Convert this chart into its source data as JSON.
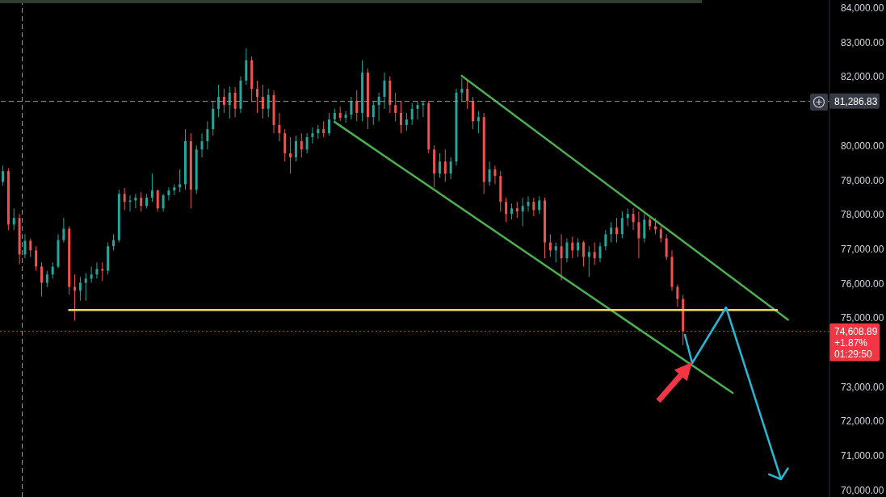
{
  "chart_data": {
    "type": "candlestick",
    "categories": [
      null,
      null,
      null,
      null,
      null,
      null,
      null,
      null,
      null,
      null,
      null,
      null,
      null,
      null,
      null,
      null,
      null,
      null,
      null,
      null,
      null,
      null,
      null,
      null,
      null,
      null,
      null,
      null,
      null,
      null,
      null,
      null,
      null,
      null,
      null,
      null,
      null,
      null,
      null,
      null,
      null,
      null,
      null,
      null,
      null,
      null,
      null,
      null,
      null,
      null,
      null,
      null,
      null,
      null,
      null,
      null,
      null,
      null,
      null,
      null,
      null,
      null,
      null,
      null,
      null,
      null,
      null,
      null,
      null,
      null,
      null,
      null,
      null,
      null,
      null,
      null,
      null,
      null,
      null,
      null,
      null,
      null,
      null,
      null,
      null,
      null,
      null,
      null,
      null,
      null,
      null,
      null,
      null,
      null,
      null,
      null,
      null,
      null,
      null,
      null,
      null,
      null,
      null,
      null,
      null,
      null,
      null,
      null,
      null,
      null,
      null,
      null,
      null,
      null,
      null,
      null,
      null,
      null,
      null,
      null,
      null,
      null,
      null,
      null,
      null,
      null,
      null,
      null,
      null,
      null,
      null,
      null,
      null,
      null,
      null,
      null,
      null,
      null,
      null,
      null,
      null,
      null,
      null,
      null,
      null,
      null,
      null,
      null,
      null,
      null
    ],
    "ohlc": [
      [
        78950,
        79420,
        78840,
        79260
      ],
      [
        79260,
        79350,
        77550,
        77710
      ],
      [
        77710,
        78180,
        77550,
        77900
      ],
      [
        77900,
        78020,
        76560,
        76840
      ],
      [
        76840,
        77430,
        76730,
        77240
      ],
      [
        77240,
        77310,
        76770,
        76960
      ],
      [
        76960,
        77080,
        76370,
        76490
      ],
      [
        76490,
        76610,
        75620,
        76020
      ],
      [
        76020,
        76370,
        75900,
        76260
      ],
      [
        76260,
        76610,
        76140,
        76490
      ],
      [
        76490,
        77430,
        76440,
        77260
      ],
      [
        77260,
        77900,
        77190,
        77590
      ],
      [
        77590,
        77660,
        75670,
        75900
      ],
      [
        75900,
        76260,
        74920,
        75790
      ],
      [
        75790,
        76190,
        75500,
        76020
      ],
      [
        76020,
        76300,
        75500,
        76140
      ],
      [
        76140,
        76490,
        76020,
        76260
      ],
      [
        76260,
        76610,
        76140,
        76420
      ],
      [
        76420,
        76610,
        76070,
        76370
      ],
      [
        76370,
        77190,
        76260,
        77080
      ],
      [
        77080,
        77430,
        76960,
        77260
      ],
      [
        77260,
        78720,
        77190,
        78600
      ],
      [
        78600,
        78770,
        78130,
        78370
      ],
      [
        78370,
        78560,
        78090,
        78410
      ],
      [
        78410,
        78600,
        78180,
        78490
      ],
      [
        78490,
        78650,
        78090,
        78250
      ],
      [
        78250,
        78600,
        78180,
        78490
      ],
      [
        78490,
        79190,
        78370,
        78700
      ],
      [
        78700,
        78720,
        78090,
        78180
      ],
      [
        78180,
        78600,
        78090,
        78560
      ],
      [
        78560,
        78790,
        78410,
        78700
      ],
      [
        78700,
        78880,
        78560,
        78790
      ],
      [
        78790,
        79310,
        78650,
        78880
      ],
      [
        78880,
        80480,
        78720,
        80130
      ],
      [
        80130,
        80360,
        78180,
        78720
      ],
      [
        78720,
        80010,
        78600,
        79890
      ],
      [
        79890,
        80360,
        79660,
        80130
      ],
      [
        80130,
        80710,
        79890,
        80480
      ],
      [
        80480,
        81300,
        80290,
        81070
      ],
      [
        81070,
        81770,
        80830,
        81420
      ],
      [
        81420,
        81650,
        80950,
        81180
      ],
      [
        81180,
        81720,
        80790,
        81540
      ],
      [
        81540,
        81700,
        80830,
        81070
      ],
      [
        81070,
        82010,
        80950,
        81890
      ],
      [
        81890,
        82830,
        81770,
        82480
      ],
      [
        82480,
        82590,
        81300,
        81650
      ],
      [
        81650,
        81890,
        80950,
        81420
      ],
      [
        81420,
        81770,
        80790,
        81070
      ],
      [
        81070,
        81650,
        80830,
        81470
      ],
      [
        81470,
        81610,
        80360,
        80600
      ],
      [
        80600,
        80950,
        80130,
        80360
      ],
      [
        80360,
        80480,
        79540,
        79780
      ],
      [
        79780,
        80250,
        79190,
        79660
      ],
      [
        79660,
        80290,
        79540,
        80130
      ],
      [
        80130,
        80360,
        79660,
        79890
      ],
      [
        79890,
        80360,
        79780,
        80250
      ],
      [
        80250,
        80530,
        80060,
        80360
      ],
      [
        80360,
        80600,
        80200,
        80480
      ],
      [
        80480,
        80710,
        80250,
        80360
      ],
      [
        80360,
        80950,
        80290,
        80760
      ],
      [
        80760,
        81070,
        80670,
        80950
      ],
      [
        80950,
        81140,
        80710,
        80810
      ],
      [
        80810,
        81000,
        80670,
        80900
      ],
      [
        80900,
        81420,
        80760,
        81300
      ],
      [
        81300,
        81610,
        80710,
        80950
      ],
      [
        80950,
        82480,
        80710,
        82120
      ],
      [
        82120,
        82240,
        80480,
        80830
      ],
      [
        80830,
        81300,
        80600,
        81180
      ],
      [
        81180,
        81540,
        80710,
        81420
      ],
      [
        81420,
        82120,
        81070,
        81890
      ],
      [
        81890,
        82010,
        80950,
        81180
      ],
      [
        81180,
        81540,
        80710,
        80950
      ],
      [
        80950,
        81300,
        80360,
        80600
      ],
      [
        80600,
        80950,
        80430,
        80760
      ],
      [
        80760,
        81230,
        80600,
        81070
      ],
      [
        81070,
        81300,
        80760,
        81180
      ],
      [
        81180,
        81300,
        80830,
        81230
      ],
      [
        81230,
        81300,
        79780,
        79890
      ],
      [
        79890,
        80010,
        78790,
        79190
      ],
      [
        79190,
        79780,
        79070,
        79540
      ],
      [
        79540,
        79890,
        78950,
        79190
      ],
      [
        79190,
        79660,
        79030,
        79540
      ],
      [
        79540,
        81650,
        79420,
        81540
      ],
      [
        81540,
        81960,
        81300,
        81650
      ],
      [
        81650,
        81890,
        81070,
        81300
      ],
      [
        81300,
        81420,
        80480,
        80710
      ],
      [
        80710,
        81000,
        80360,
        80830
      ],
      [
        80830,
        80950,
        78600,
        78950
      ],
      [
        78950,
        79540,
        78840,
        79310
      ],
      [
        79310,
        79420,
        78880,
        79120
      ],
      [
        79120,
        79260,
        78090,
        78370
      ],
      [
        78370,
        78490,
        77780,
        78020
      ],
      [
        78020,
        78320,
        77850,
        78180
      ],
      [
        78180,
        78370,
        77900,
        78090
      ],
      [
        78090,
        78490,
        77660,
        78250
      ],
      [
        78250,
        78530,
        78090,
        78370
      ],
      [
        78370,
        78490,
        77950,
        78130
      ],
      [
        78130,
        78530,
        78020,
        78410
      ],
      [
        78410,
        78490,
        76730,
        77190
      ],
      [
        77190,
        77430,
        76770,
        76960
      ],
      [
        76960,
        77190,
        76610,
        77080
      ],
      [
        77080,
        77430,
        76090,
        76730
      ],
      [
        76730,
        77310,
        76610,
        77190
      ],
      [
        77190,
        77360,
        76730,
        76960
      ],
      [
        76960,
        77310,
        76770,
        77190
      ],
      [
        77190,
        77240,
        76490,
        76770
      ],
      [
        76770,
        77080,
        76190,
        76910
      ],
      [
        76910,
        77190,
        76540,
        76730
      ],
      [
        76730,
        77190,
        76610,
        77080
      ],
      [
        77080,
        77550,
        76960,
        77430
      ],
      [
        77430,
        77780,
        77190,
        77620
      ],
      [
        77620,
        77900,
        77190,
        77430
      ],
      [
        77430,
        78090,
        77310,
        77900
      ],
      [
        77900,
        78180,
        77660,
        78020
      ],
      [
        78020,
        78180,
        77550,
        77780
      ],
      [
        77780,
        78090,
        76730,
        77310
      ],
      [
        77310,
        78020,
        77190,
        77850
      ],
      [
        77850,
        77950,
        77550,
        77660
      ],
      [
        77660,
        77900,
        77430,
        77570
      ],
      [
        77570,
        77660,
        77190,
        77310
      ],
      [
        77310,
        77430,
        76680,
        76770
      ],
      [
        76770,
        76960,
        75790,
        75900
      ],
      [
        75900,
        75970,
        75320,
        75550
      ],
      [
        75550,
        75670,
        74210,
        74610
      ],
      null,
      null,
      null,
      null,
      null,
      null,
      null,
      null,
      null,
      null,
      null,
      null,
      null,
      null,
      null,
      null,
      null,
      null,
      null,
      null,
      null,
      null,
      null,
      null,
      null,
      null
    ],
    "colors": [
      "#26a69a",
      "#ef5350",
      "#26a69a",
      "#ef5350",
      "#26a69a",
      "#ef5350",
      "#ef5350",
      "#ef5350",
      "#26a69a",
      "#26a69a",
      "#26a69a",
      "#26a69a",
      "#ef5350",
      "#ef5350",
      "#26a69a",
      "#26a69a",
      "#26a69a",
      "#26a69a",
      "#ef5350",
      "#26a69a",
      "#26a69a",
      "#26a69a",
      "#ef5350",
      "#26a69a",
      "#26a69a",
      "#ef5350",
      "#26a69a",
      "#26a69a",
      "#ef5350",
      "#26a69a",
      "#26a69a",
      "#26a69a",
      "#26a69a",
      "#26a69a",
      "#ef5350",
      "#26a69a",
      "#26a69a",
      "#26a69a",
      "#26a69a",
      "#26a69a",
      "#ef5350",
      "#26a69a",
      "#ef5350",
      "#26a69a",
      "#26a69a",
      "#ef5350",
      "#ef5350",
      "#ef5350",
      "#26a69a",
      "#ef5350",
      "#ef5350",
      "#ef5350",
      "#ef5350",
      "#26a69a",
      "#ef5350",
      "#26a69a",
      "#26a69a",
      "#26a69a",
      "#ef5350",
      "#26a69a",
      "#26a69a",
      "#ef5350",
      "#26a69a",
      "#26a69a",
      "#ef5350",
      "#26a69a",
      "#ef5350",
      "#26a69a",
      "#26a69a",
      "#26a69a",
      "#ef5350",
      "#ef5350",
      "#ef5350",
      "#26a69a",
      "#26a69a",
      "#26a69a",
      "#26a69a",
      "#ef5350",
      "#ef5350",
      "#26a69a",
      "#ef5350",
      "#26a69a",
      "#26a69a",
      "#26a69a",
      "#ef5350",
      "#ef5350",
      "#26a69a",
      "#ef5350",
      "#26a69a",
      "#ef5350",
      "#ef5350",
      "#ef5350",
      "#26a69a",
      "#ef5350",
      "#26a69a",
      "#26a69a",
      "#ef5350",
      "#26a69a",
      "#ef5350",
      "#ef5350",
      "#26a69a",
      "#ef5350",
      "#26a69a",
      "#ef5350",
      "#26a69a",
      "#ef5350",
      "#26a69a",
      "#ef5350",
      "#26a69a",
      "#26a69a",
      "#26a69a",
      "#ef5350",
      "#26a69a",
      "#26a69a",
      "#ef5350",
      "#ef5350",
      "#26a69a",
      "#ef5350",
      "#ef5350",
      "#ef5350",
      "#ef5350",
      "#ef5350",
      "#ef5350",
      "#ef5350",
      null,
      null,
      null,
      null,
      null,
      null,
      null,
      null,
      null,
      null,
      null,
      null,
      null,
      null,
      null,
      null,
      null,
      null,
      null,
      null,
      null,
      null,
      null,
      null,
      null,
      null
    ],
    "series": [
      {
        "type": "line",
        "color": "#4caf50",
        "values": [
          null,
          null,
          null,
          null,
          null,
          null,
          null,
          null,
          null,
          null,
          null,
          null,
          null,
          null,
          null,
          null,
          null,
          null,
          null,
          null,
          null,
          null,
          null,
          null,
          null,
          null,
          null,
          null,
          null,
          null,
          null,
          null,
          null,
          null,
          null,
          null,
          null,
          null,
          null,
          null,
          null,
          null,
          null,
          null,
          null,
          null,
          null,
          null,
          null,
          null,
          null,
          null,
          null,
          null,
          null,
          null,
          null,
          null,
          null,
          null,
          null,
          null,
          null,
          null,
          null,
          null,
          null,
          null,
          null,
          null,
          null,
          null,
          null,
          null,
          null,
          null,
          null,
          null,
          null,
          null,
          null,
          null,
          null,
          82030,
          null,
          null,
          null,
          null,
          null,
          null,
          null,
          null,
          null,
          null,
          null,
          null,
          null,
          null,
          null,
          null,
          null,
          null,
          null,
          null,
          null,
          null,
          null,
          null,
          null,
          null,
          null,
          null,
          null,
          null,
          null,
          null,
          null,
          null,
          null,
          null,
          null,
          null,
          null,
          null,
          null,
          null,
          null,
          null,
          null,
          null,
          null,
          null,
          null,
          null,
          null,
          null,
          null,
          null,
          null,
          null,
          null,
          null,
          74950,
          null,
          null,
          null,
          null,
          null,
          null,
          null
        ]
      },
      {
        "type": "line",
        "color": "#4caf50",
        "values": [
          null,
          null,
          null,
          null,
          null,
          null,
          null,
          null,
          null,
          null,
          null,
          null,
          null,
          null,
          null,
          null,
          null,
          null,
          null,
          null,
          null,
          null,
          null,
          null,
          null,
          null,
          null,
          null,
          null,
          null,
          null,
          null,
          null,
          null,
          null,
          null,
          null,
          null,
          null,
          null,
          null,
          null,
          null,
          null,
          null,
          null,
          null,
          null,
          null,
          null,
          null,
          null,
          null,
          null,
          null,
          null,
          null,
          null,
          null,
          null,
          80690,
          null,
          null,
          null,
          null,
          null,
          null,
          null,
          null,
          null,
          null,
          null,
          null,
          null,
          null,
          null,
          null,
          null,
          null,
          null,
          null,
          null,
          null,
          null,
          null,
          null,
          null,
          null,
          null,
          null,
          null,
          null,
          null,
          null,
          null,
          null,
          null,
          null,
          null,
          null,
          null,
          null,
          null,
          null,
          null,
          null,
          null,
          null,
          null,
          null,
          null,
          null,
          null,
          null,
          null,
          null,
          null,
          null,
          null,
          null,
          null,
          null,
          null,
          null,
          null,
          null,
          null,
          null,
          null,
          null,
          null,
          null,
          72820,
          null,
          null,
          null,
          null,
          null,
          null,
          null,
          null,
          null,
          null,
          null,
          null,
          null,
          null,
          null,
          null,
          null
        ]
      },
      {
        "type": "line",
        "color": "#f0dc5a",
        "values": [
          null,
          null,
          null,
          null,
          null,
          null,
          null,
          null,
          null,
          null,
          null,
          null,
          75230,
          null,
          null,
          null,
          null,
          null,
          null,
          null,
          null,
          null,
          null,
          null,
          null,
          null,
          null,
          null,
          null,
          null,
          null,
          null,
          null,
          null,
          null,
          null,
          null,
          null,
          null,
          null,
          null,
          null,
          null,
          null,
          null,
          null,
          null,
          null,
          null,
          null,
          null,
          null,
          null,
          null,
          null,
          null,
          null,
          null,
          null,
          null,
          null,
          null,
          null,
          null,
          null,
          null,
          null,
          null,
          null,
          null,
          null,
          null,
          null,
          null,
          null,
          null,
          null,
          null,
          null,
          null,
          null,
          null,
          null,
          null,
          null,
          null,
          null,
          null,
          null,
          null,
          null,
          null,
          null,
          null,
          null,
          null,
          null,
          null,
          null,
          null,
          null,
          null,
          null,
          null,
          null,
          null,
          null,
          null,
          null,
          null,
          null,
          null,
          null,
          null,
          null,
          null,
          null,
          null,
          null,
          null,
          null,
          null,
          null,
          null,
          null,
          null,
          null,
          null,
          null,
          null,
          null,
          null,
          null,
          null,
          null,
          null,
          null,
          null,
          null,
          null,
          75230,
          null,
          null,
          null,
          null,
          null,
          null,
          null,
          null,
          null
        ]
      }
    ],
    "ylim": [
      69800,
      84230
    ],
    "yticks": [
      {
        "value": 70000,
        "label": "70,000.00"
      },
      {
        "value": 71000,
        "label": "71,000.00"
      },
      {
        "value": 72000,
        "label": "72,000.00"
      },
      {
        "value": 73000,
        "label": "73,000.00"
      },
      {
        "value": 75000,
        "label": "75,000.00"
      },
      {
        "value": 76000,
        "label": "76,000.00"
      },
      {
        "value": 77000,
        "label": "77,000.00"
      },
      {
        "value": 78000,
        "label": "78,000.00"
      },
      {
        "value": 79000,
        "label": "79,000.00"
      },
      {
        "value": 80000,
        "label": "80,000.00"
      },
      {
        "value": 82000,
        "label": "82,000.00"
      },
      {
        "value": 83000,
        "label": "83,000.00"
      },
      {
        "value": 84000,
        "label": "84,000.00"
      }
    ],
    "tick_labels": "y",
    "ref_lines": [
      {
        "axis": "y",
        "value": 81286.83,
        "label": "81,286.83",
        "color": "#9598a1",
        "line_style": "dashed"
      },
      {
        "axis": "y",
        "value": 74608.89,
        "label": "74,608.89",
        "color": "#f23645",
        "line_style": "dotted"
      }
    ],
    "annotations": [
      "+1.87%",
      "01:29:50"
    ]
  }
}
